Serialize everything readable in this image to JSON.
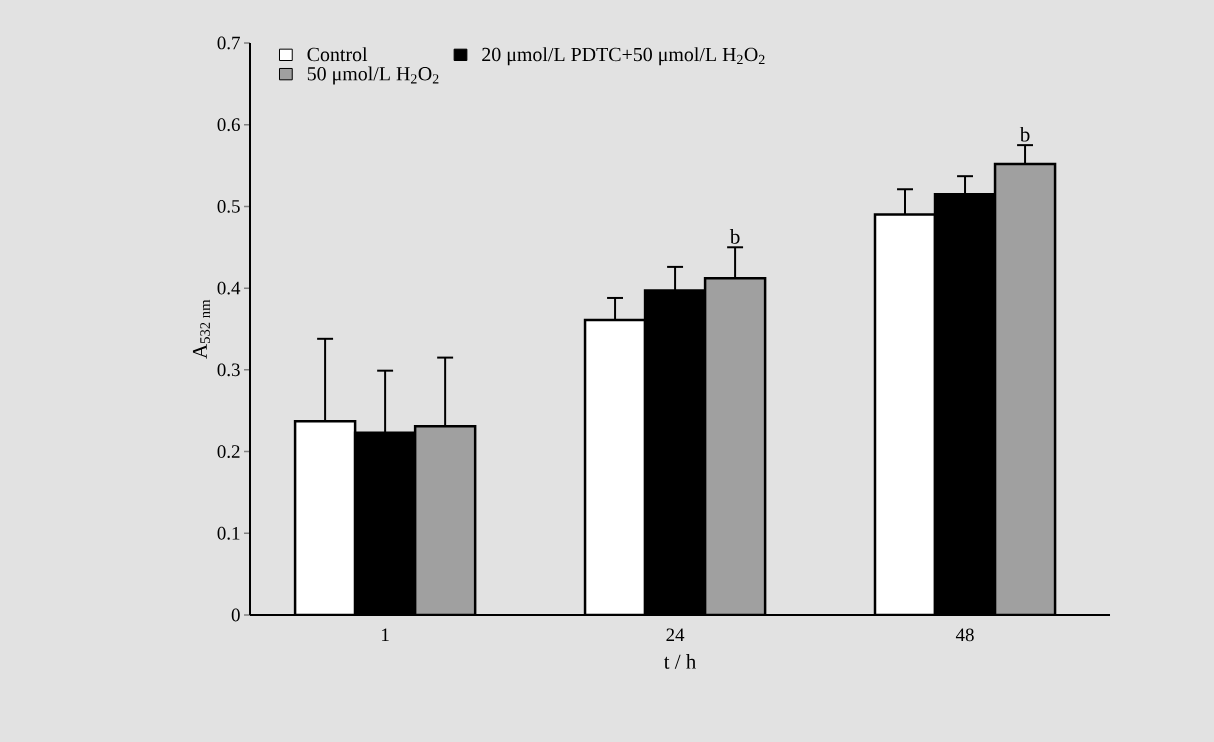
{
  "chart_data": {
    "type": "bar",
    "xlabel": "t / h",
    "ylabel": "A$_{532 nm}$",
    "categories": [
      "1",
      "24",
      "48"
    ],
    "series": [
      {
        "name": "Control",
        "color": "#ffffff",
        "values": [
          0.237,
          0.361,
          0.49
        ],
        "errors": [
          0.101,
          0.027,
          0.031
        ]
      },
      {
        "name": "20 μmol/L PDTC+50 μmol/L H$_{2}$O$_{2}$",
        "color": "#000000",
        "values": [
          0.223,
          0.397,
          0.515
        ],
        "errors": [
          0.076,
          0.029,
          0.022
        ]
      },
      {
        "name": "50 μmol/L H$_{2}$O$_{2}$",
        "color": "#a0a0a0",
        "values": [
          0.231,
          0.412,
          0.552
        ],
        "errors": [
          0.084,
          0.038,
          0.023
        ]
      }
    ],
    "ylim": [
      0,
      0.7
    ],
    "yticks": [
      0,
      0.1,
      0.2,
      0.3,
      0.4,
      0.5,
      0.6,
      0.7
    ],
    "annotations": [
      "b",
      "b"
    ],
    "legend": "top left",
    "grid": false
  }
}
